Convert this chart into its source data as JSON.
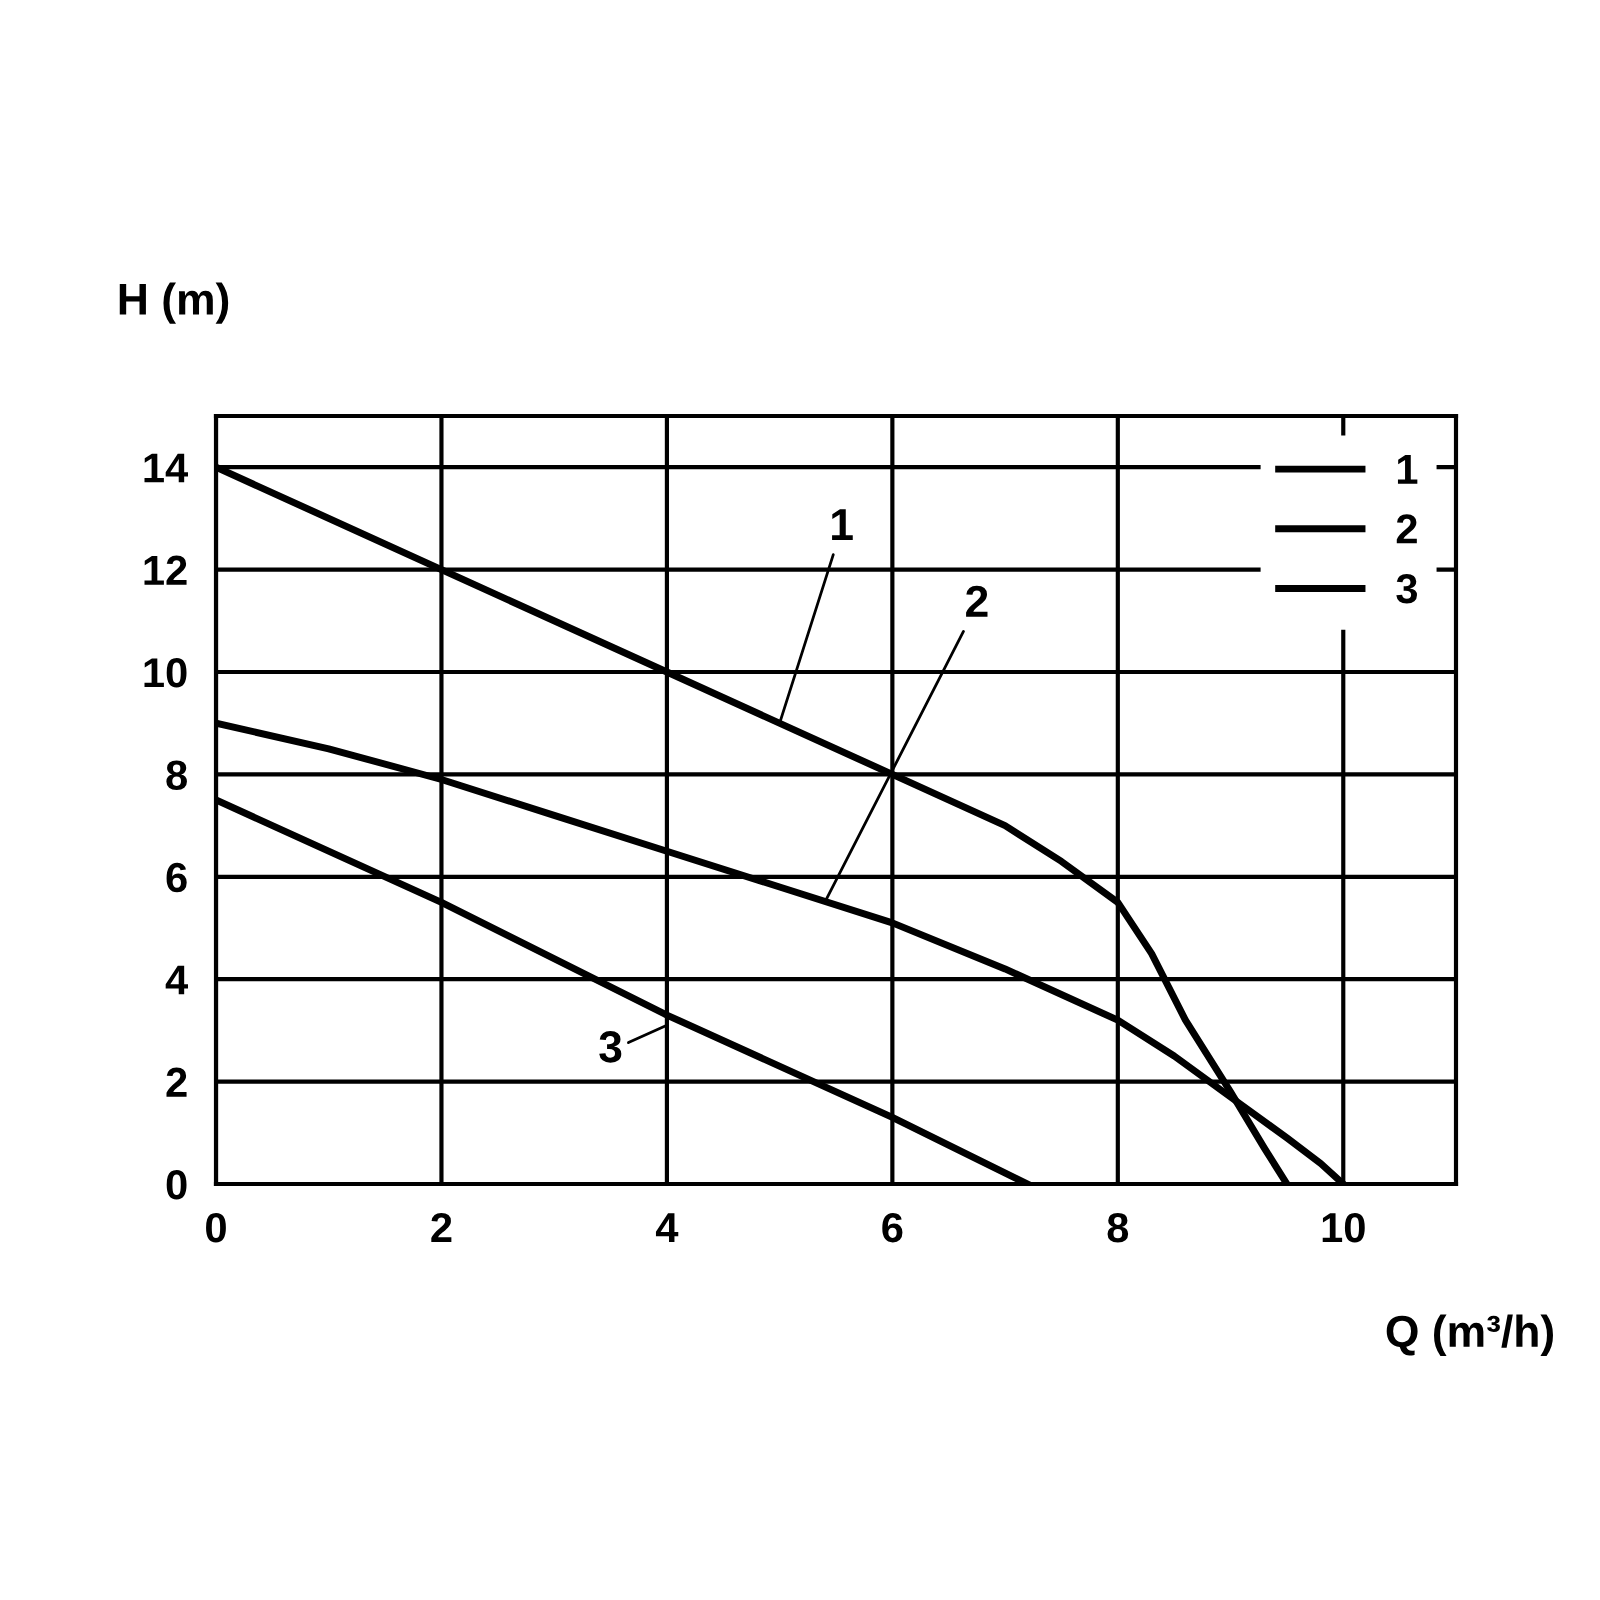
{
  "chart_data": {
    "type": "line",
    "xlabel": "Q (m³/h)",
    "ylabel": "H (m)",
    "xlim": [
      0,
      11
    ],
    "ylim": [
      0,
      15
    ],
    "xticks": [
      0,
      2,
      4,
      6,
      8,
      10
    ],
    "yticks": [
      0,
      2,
      4,
      6,
      8,
      10,
      12,
      14
    ],
    "grid": true,
    "legend": "top right",
    "marker": "none",
    "line_style": "solid",
    "series": [
      {
        "name": "1",
        "color": "#000000",
        "x": [
          0,
          2,
          4,
          6,
          7,
          7.5,
          8,
          8.3,
          8.6,
          9,
          9.3,
          9.5
        ],
        "values": [
          14,
          12,
          10,
          8,
          7,
          6.3,
          5.5,
          4.5,
          3.2,
          1.8,
          0.7,
          0
        ]
      },
      {
        "name": "2",
        "color": "#000000",
        "x": [
          0,
          1,
          2,
          3,
          4,
          5,
          6,
          7,
          8,
          8.5,
          9,
          9.5,
          9.8,
          10
        ],
        "values": [
          9,
          8.5,
          7.9,
          7.2,
          6.5,
          5.8,
          5.1,
          4.2,
          3.2,
          2.5,
          1.7,
          0.9,
          0.4,
          0
        ]
      },
      {
        "name": "3",
        "color": "#000000",
        "x": [
          0,
          2,
          4,
          6,
          7.2
        ],
        "values": [
          7.5,
          5.5,
          3.3,
          1.3,
          0
        ]
      }
    ],
    "annotations": [
      {
        "text": "1",
        "x": 5,
        "y": 9
      },
      {
        "text": "2",
        "x": 5.4,
        "y": 5.5
      },
      {
        "text": "3",
        "x": 4,
        "y": 3.1
      }
    ]
  }
}
